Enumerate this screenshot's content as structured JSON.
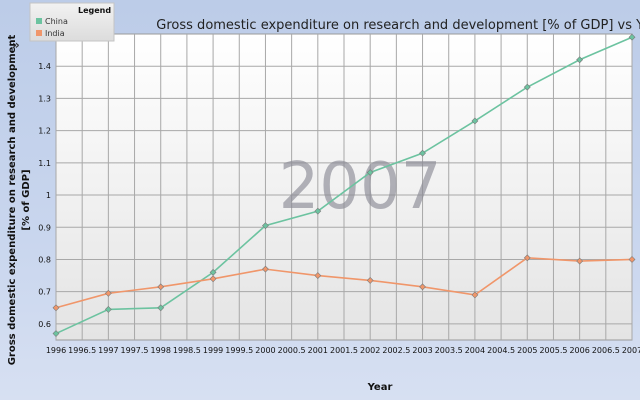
{
  "collapse_toggle": "»",
  "chart_data": {
    "type": "line",
    "title": "Gross domestic expenditure on research and development [% of GDP] vs Year",
    "xlabel": "Year",
    "ylabel_line1": "Gross domestic expenditure on research and development",
    "ylabel_line2": "[% of GDP]",
    "watermark": "2007",
    "legend": {
      "title": "Legend",
      "placement": "top-left"
    },
    "grid": true,
    "xlim": [
      1996,
      2007
    ],
    "ylim": [
      0.55,
      1.5
    ],
    "x_ticks": [
      "1996",
      "1996.5",
      "1997",
      "1997.5",
      "1998",
      "1998.5",
      "1999",
      "1999.5",
      "2000",
      "2000.5",
      "2001",
      "2001.5",
      "2002",
      "2002.5",
      "2003",
      "2003.5",
      "2004",
      "2004.5",
      "2005",
      "2005.5",
      "2006",
      "2006.5",
      "2007"
    ],
    "y_ticks": [
      "0.6",
      "0.7",
      "0.8",
      "0.9",
      "1",
      "1.1",
      "1.2",
      "1.3",
      "1.4"
    ],
    "x": [
      1996,
      1997,
      1998,
      1999,
      2000,
      2001,
      2002,
      2003,
      2004,
      2005,
      2006,
      2007
    ],
    "series": [
      {
        "name": "China",
        "color": "#6cc3a0",
        "values": [
          0.57,
          0.645,
          0.65,
          0.76,
          0.905,
          0.95,
          1.07,
          1.13,
          1.23,
          1.335,
          1.42,
          1.49
        ]
      },
      {
        "name": "India",
        "color": "#f0966a",
        "values": [
          0.65,
          0.695,
          0.715,
          0.74,
          0.77,
          0.75,
          0.735,
          0.715,
          0.69,
          0.805,
          0.795,
          0.8
        ]
      }
    ]
  }
}
